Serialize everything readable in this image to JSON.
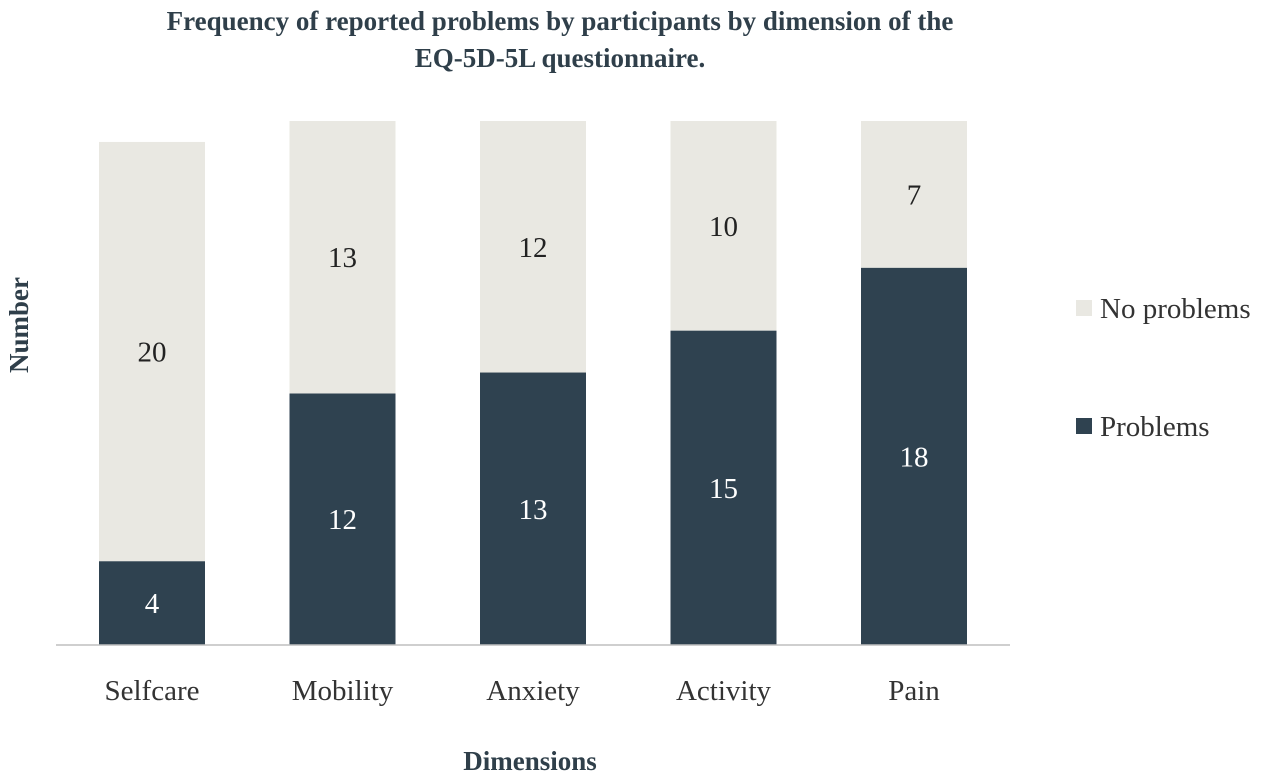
{
  "chart_data": {
    "type": "bar",
    "stacked": true,
    "title_lines": [
      "Frequency of reported problems by participants by dimension of the",
      "EQ-5D-5L questionnaire."
    ],
    "xlabel": "Dimensions",
    "ylabel": "Number",
    "categories": [
      "Selfcare",
      "Mobility",
      "Anxiety",
      "Activity",
      "Pain"
    ],
    "series": [
      {
        "name": "Problems",
        "values": [
          4,
          12,
          13,
          15,
          18
        ],
        "color": "#2f4250",
        "label_color": "#ffffff"
      },
      {
        "name": "No problems",
        "values": [
          20,
          13,
          12,
          10,
          7
        ],
        "color": "#e9e8e2",
        "label_color": "#222222"
      }
    ],
    "legend": {
      "position": "right",
      "order": [
        "No problems",
        "Problems"
      ]
    },
    "grid": false
  }
}
